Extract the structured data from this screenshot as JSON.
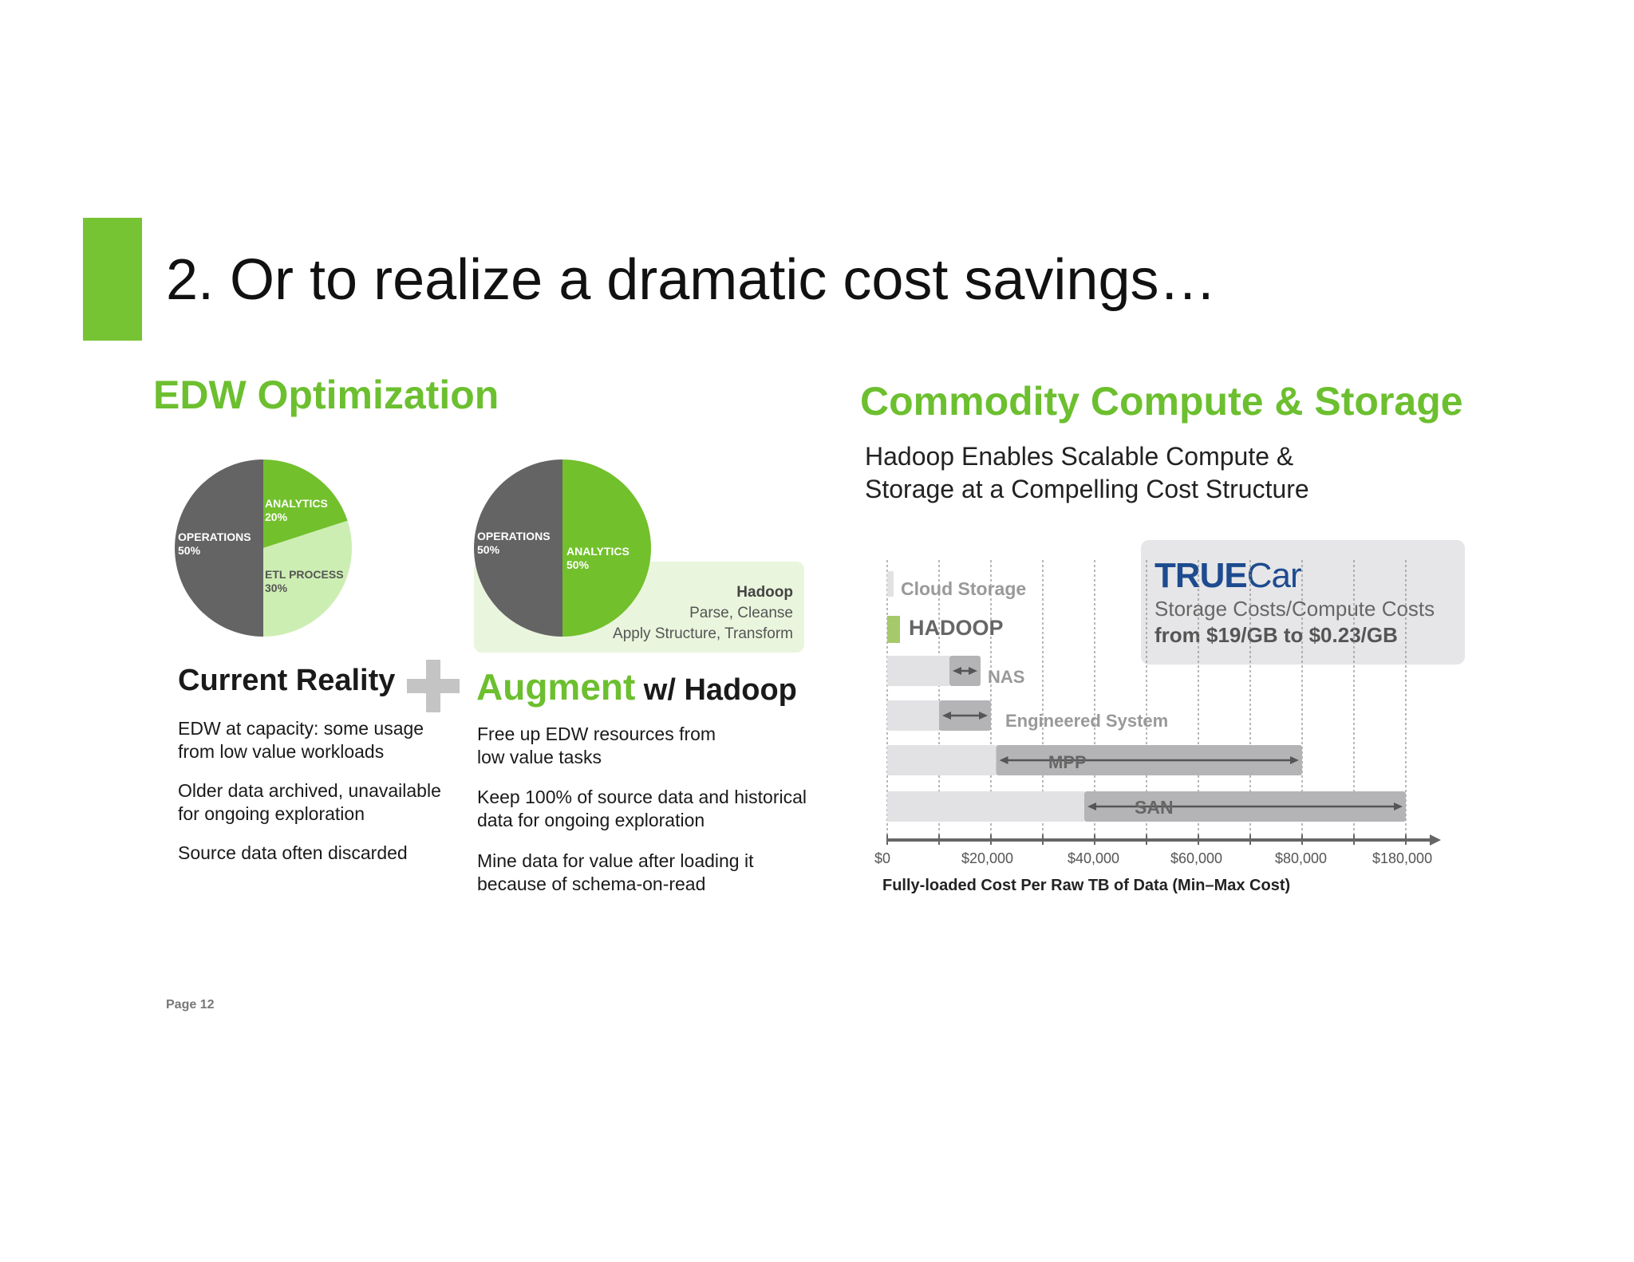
{
  "slide": {
    "title": "2. Or to realize a dramatic cost savings…",
    "page_label": "Page 12"
  },
  "edw": {
    "heading": "EDW Optimization",
    "current": {
      "heading": "Current Reality",
      "pie": [
        {
          "label": "OPERATIONS",
          "value": "50%",
          "color": "#666666"
        },
        {
          "label": "ANALYTICS",
          "value": "20%",
          "color": "#72c02c"
        },
        {
          "label": "ETL PROCESS",
          "value": "30%",
          "color": "#cdeeb3"
        }
      ],
      "bullets": [
        "EDW at capacity: some usage from low value workloads",
        "Older data archived, unavailable for ongoing exploration",
        "Source data often discarded"
      ]
    },
    "plus_icon": "plus-icon",
    "augment": {
      "heading_green": "Augment",
      "heading_dark": "w/ Hadoop",
      "pie": [
        {
          "label": "OPERATIONS",
          "value": "50%",
          "color": "#666666"
        },
        {
          "label": "ANALYTICS",
          "value": "50%",
          "color": "#72c02c"
        }
      ],
      "hadoop_box": {
        "title": "Hadoop",
        "line1": "Parse, Cleanse",
        "line2": "Apply Structure, Transform"
      },
      "bullets": [
        "Free up EDW resources from low value tasks",
        "Keep 100% of source data and historical data for ongoing exploration",
        "Mine data for value after loading it because of schema-on-read"
      ]
    }
  },
  "commodity": {
    "heading": "Commodity Compute & Storage",
    "subheading_line1": "Hadoop Enables Scalable Compute &",
    "subheading_line2": "Storage at a Compelling Cost Structure",
    "truecar": {
      "logo_text_bold": "TRUE",
      "logo_text_light": "Car",
      "line1": "Storage Costs/Compute Costs",
      "line2": "from $19/GB to $0.23/GB"
    }
  },
  "chart_data": {
    "type": "bar",
    "orientation": "horizontal",
    "xlabel": "Fully-loaded Cost Per Raw TB of Data (Min–Max Cost)",
    "x_ticks": [
      "$0",
      "$20,000",
      "$40,000",
      "$60,000",
      "$80,000",
      "$180,000"
    ],
    "categories": [
      "Cloud Storage",
      "HADOOP",
      "NAS",
      "Engineered System",
      "MPP",
      "SAN"
    ],
    "series": [
      {
        "values_min": [
          0,
          0,
          12000,
          10000,
          21000,
          38000
        ],
        "values_max": [
          1000,
          2000,
          18000,
          20000,
          80000,
          180000
        ]
      }
    ],
    "colors": {
      "base": "#e2e2e4",
      "range": "#b4b4b6",
      "hadoop": "#a6c96b",
      "axis": "#666666"
    }
  }
}
